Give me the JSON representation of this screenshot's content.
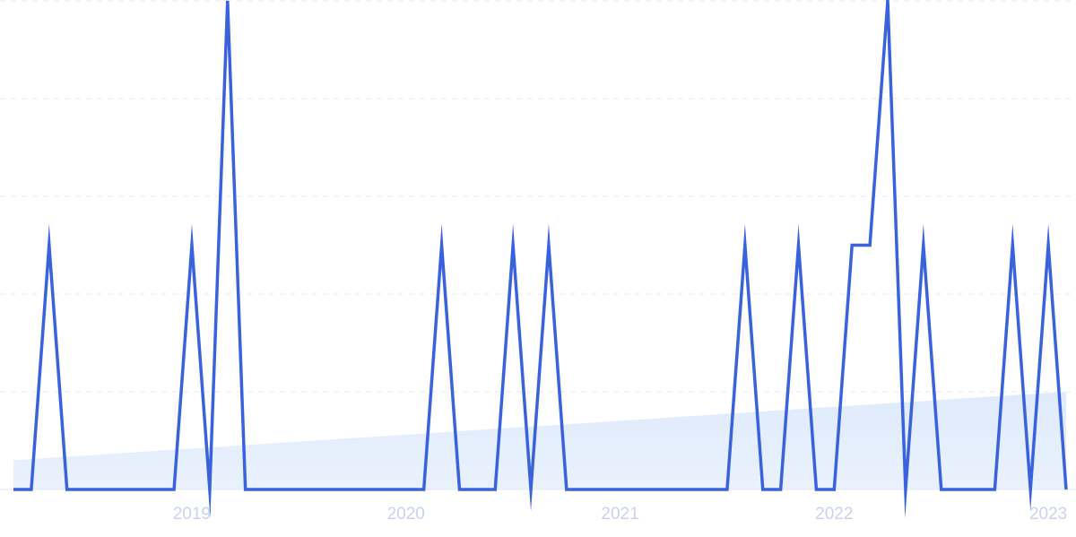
{
  "chart_data": {
    "type": "line",
    "categories": [
      null,
      null,
      null,
      null,
      null,
      null,
      null,
      null,
      null,
      null,
      "2019",
      null,
      null,
      null,
      null,
      null,
      null,
      null,
      null,
      null,
      null,
      null,
      "2020",
      null,
      null,
      null,
      null,
      null,
      null,
      null,
      null,
      null,
      null,
      null,
      "2021",
      null,
      null,
      null,
      null,
      null,
      null,
      null,
      null,
      null,
      null,
      null,
      "2022",
      null,
      null,
      null,
      null,
      null,
      null,
      null,
      null,
      null,
      null,
      null,
      "2023",
      null
    ],
    "series": [
      {
        "color": "#3a62dc",
        "values": [
          0,
          0,
          50,
          0,
          0,
          0,
          0,
          0,
          0,
          0,
          50,
          0,
          100,
          0,
          0,
          0,
          0,
          0,
          0,
          0,
          0,
          0,
          0,
          0,
          50,
          0,
          0,
          0,
          50,
          0,
          50,
          0,
          0,
          0,
          0,
          0,
          0,
          0,
          0,
          0,
          0,
          50,
          0,
          0,
          50,
          0,
          0,
          50,
          50,
          100,
          0,
          50,
          0,
          0,
          0,
          0,
          50,
          0,
          50,
          0
        ]
      }
    ],
    "trend": [
      6,
      20
    ],
    "trend_color": "#dbe8fb",
    "ylim": [
      0,
      100
    ],
    "yticks": [
      0,
      20,
      40,
      60,
      80,
      100
    ],
    "grid": true
  }
}
